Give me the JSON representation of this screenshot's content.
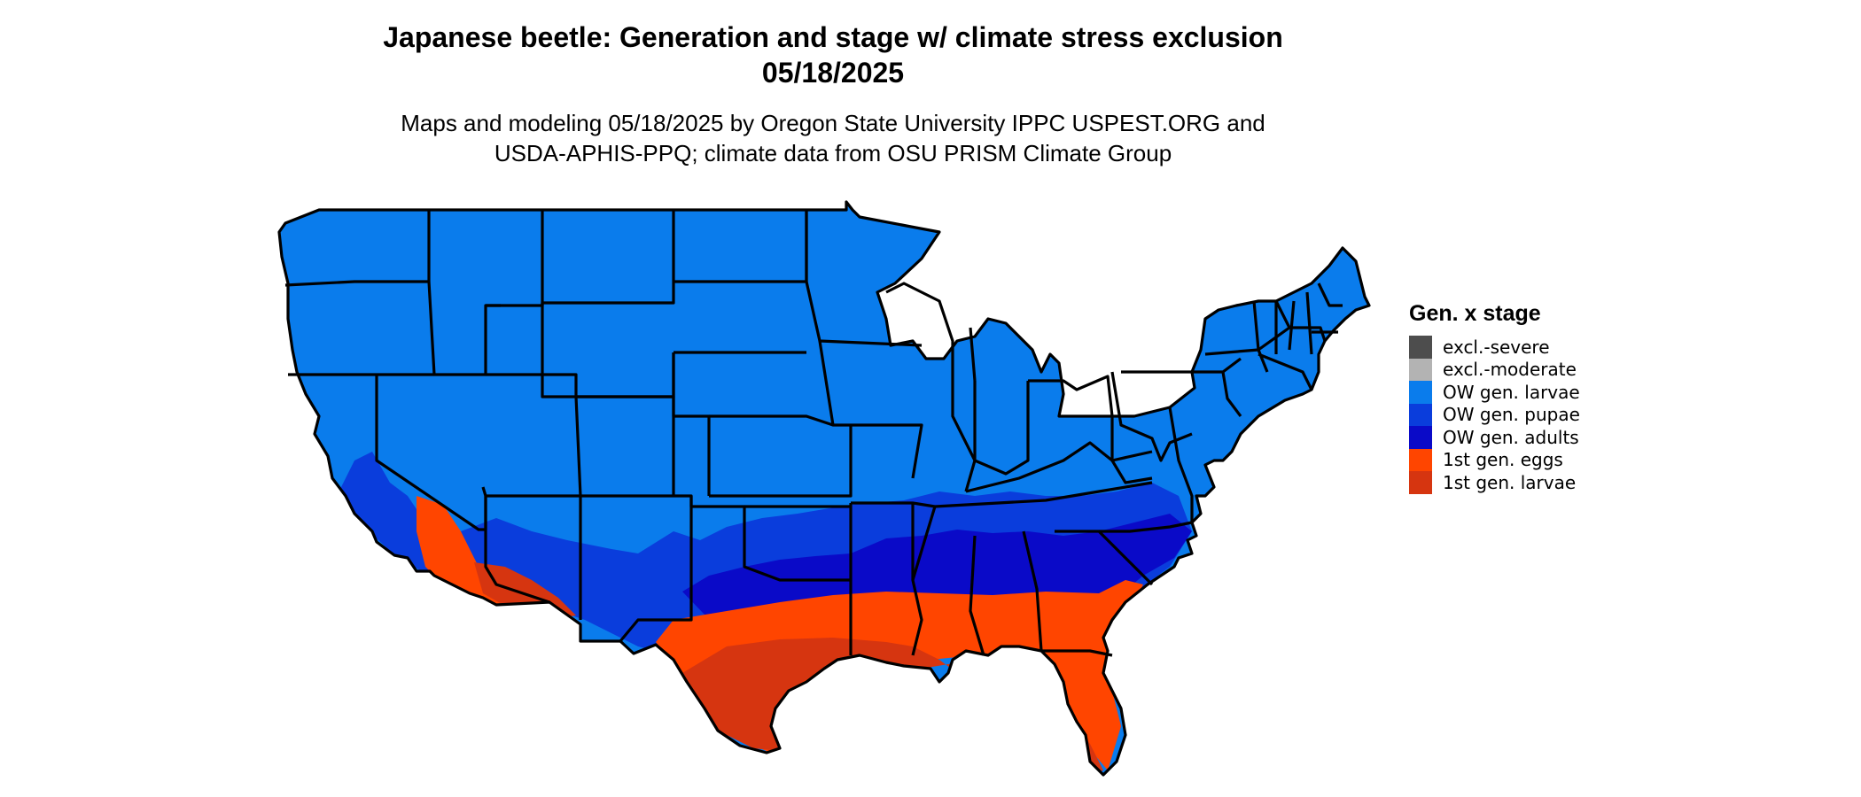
{
  "title": {
    "line1": "Japanese beetle: Generation and stage w/ climate stress exclusion",
    "line2": "05/18/2025"
  },
  "subtitle": {
    "line1": "Maps and modeling 05/18/2025 by Oregon State University IPPC USPEST.ORG and",
    "line2": "USDA-APHIS-PPQ; climate data from OSU PRISM Climate Group"
  },
  "legend": {
    "title": "Gen. x stage",
    "items": [
      {
        "label": "excl.-severe",
        "color": "#4d4d4d"
      },
      {
        "label": "excl.-moderate",
        "color": "#b3b3b3"
      },
      {
        "label": "OW gen. larvae",
        "color": "#0a7cec"
      },
      {
        "label": "OW gen. pupae",
        "color": "#0a3ddc"
      },
      {
        "label": "OW gen. adults",
        "color": "#0a0ac8"
      },
      {
        "label": "1st gen. eggs",
        "color": "#ff4500"
      },
      {
        "label": "1st gen. larvae",
        "color": "#d63510"
      }
    ]
  },
  "map": {
    "region": "Contiguous United States",
    "colors": {
      "base": "#0a7cec",
      "pupae": "#0a3ddc",
      "adults": "#0a0ac8",
      "eggs": "#ff4500",
      "larvae1": "#d63510",
      "border": "#000000"
    }
  }
}
